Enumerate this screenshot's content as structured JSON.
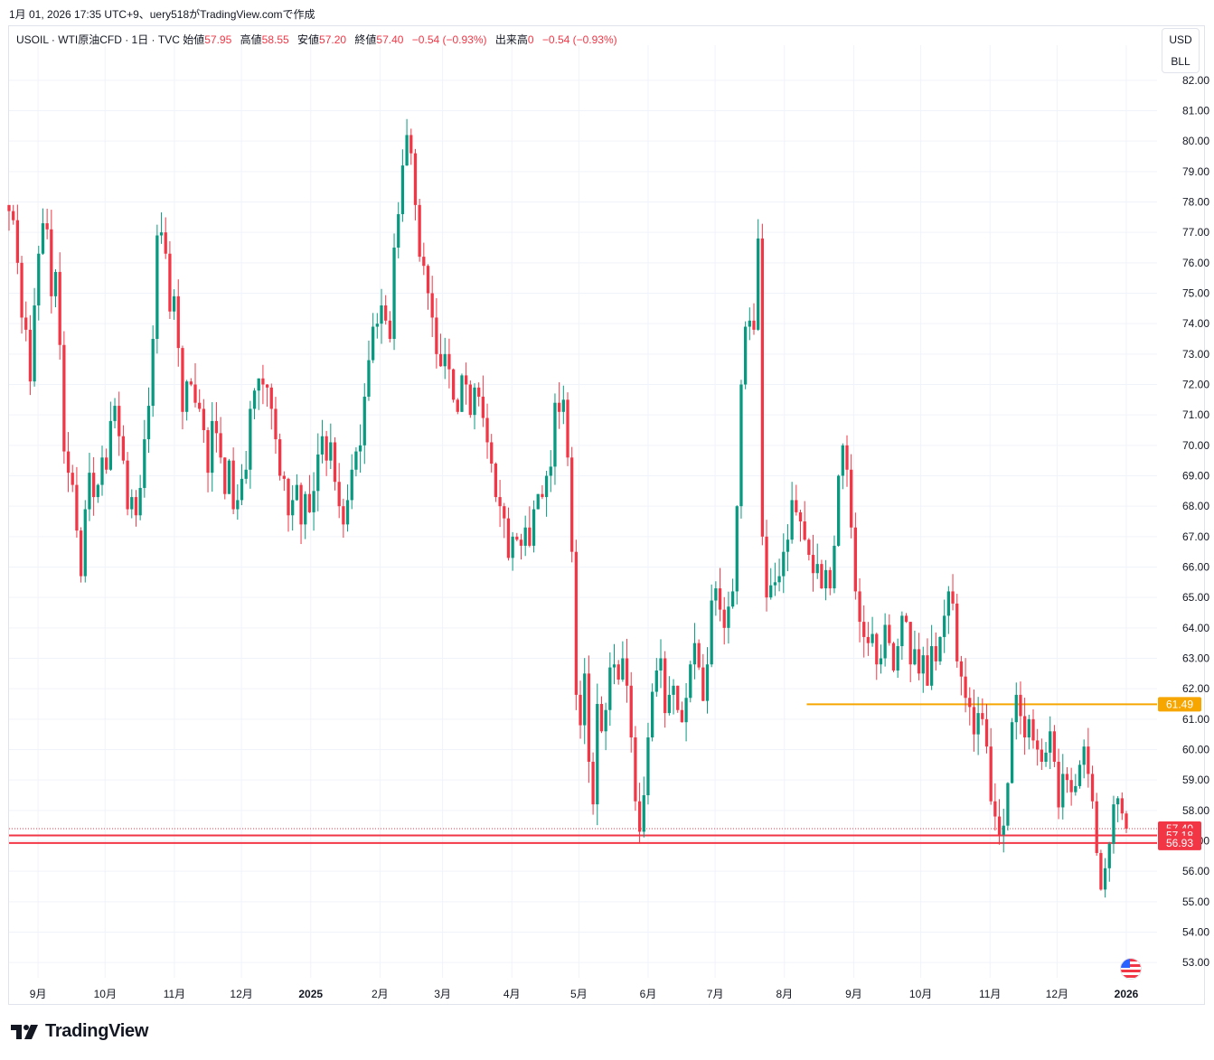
{
  "header": {
    "caption": "1月 01, 2026 17:35 UTC+9、uery518がTradingView.comで作成"
  },
  "legend": {
    "symbol": "USOIL · WTI原油CFD · 1日 · TVC",
    "open_label": "始値",
    "open": "57.95",
    "high_label": "高値",
    "high": "58.55",
    "low_label": "安値",
    "low": "57.20",
    "close_label": "終値",
    "close": "57.40",
    "change": "−0.54 (−0.93%)",
    "volume_label": "出来高",
    "volume": "0",
    "volume_change": "−0.54 (−0.93%)"
  },
  "units": {
    "currency": "USD",
    "unit": "BLL"
  },
  "footer": {
    "brand": "TradingView"
  },
  "colors": {
    "up": "#089981",
    "down": "#f23645",
    "level": "#f7a600",
    "grid": "#f0f3fa",
    "text": "#131722",
    "price_line": "#f23645"
  },
  "chart_data": {
    "type": "candlestick",
    "symbol": "USOIL",
    "interval": "1D",
    "ylim": [
      52.5,
      82.5
    ],
    "y_ticks": [
      "53.00",
      "54.00",
      "55.00",
      "56.00",
      "57.00",
      "58.00",
      "59.00",
      "60.00",
      "61.00",
      "62.00",
      "63.00",
      "64.00",
      "65.00",
      "66.00",
      "67.00",
      "68.00",
      "69.00",
      "70.00",
      "71.00",
      "72.00",
      "73.00",
      "74.00",
      "75.00",
      "76.00",
      "77.00",
      "78.00",
      "79.00",
      "80.00",
      "81.00",
      "82.00"
    ],
    "x_ticks": [
      {
        "label": "9月",
        "date": "2024-09-01"
      },
      {
        "label": "10月",
        "date": "2024-10-01"
      },
      {
        "label": "11月",
        "date": "2024-11-01"
      },
      {
        "label": "12月",
        "date": "2024-12-01"
      },
      {
        "label": "2025",
        "date": "2025-01-01",
        "bold": true
      },
      {
        "label": "2月",
        "date": "2025-02-01"
      },
      {
        "label": "3月",
        "date": "2025-03-01"
      },
      {
        "label": "4月",
        "date": "2025-04-01"
      },
      {
        "label": "5月",
        "date": "2025-05-01"
      },
      {
        "label": "6月",
        "date": "2025-06-01"
      },
      {
        "label": "7月",
        "date": "2025-07-01"
      },
      {
        "label": "8月",
        "date": "2025-08-01"
      },
      {
        "label": "9月",
        "date": "2025-09-01"
      },
      {
        "label": "10月",
        "date": "2025-10-01"
      },
      {
        "label": "11月",
        "date": "2025-11-01"
      },
      {
        "label": "12月",
        "date": "2025-12-01"
      },
      {
        "label": "2026",
        "date": "2026-01-01",
        "bold": true
      }
    ],
    "candle_dates": [
      "2024-08-19",
      "2026-01-01"
    ],
    "candles_close": [
      77.7,
      77.4,
      76.0,
      74.2,
      73.8,
      72.1,
      74.6,
      76.3,
      77.3,
      77.1,
      74.9,
      75.7,
      73.3,
      69.8,
      69.1,
      68.7,
      67.2,
      65.7,
      67.9,
      69.1,
      68.3,
      68.7,
      69.6,
      69.2,
      70.8,
      71.3,
      70.3,
      69.5,
      67.9,
      68.3,
      67.7,
      68.6,
      70.2,
      71.3,
      73.5,
      76.9,
      77.0,
      76.3,
      74.4,
      74.9,
      73.2,
      71.1,
      72.1,
      72.0,
      71.4,
      71.2,
      70.5,
      69.1,
      70.8,
      70.4,
      69.6,
      68.4,
      69.5,
      67.9,
      68.2,
      68.9,
      69.2,
      71.2,
      71.8,
      72.2,
      72.0,
      71.9,
      71.2,
      70.2,
      69.0,
      68.9,
      67.7,
      68.2,
      68.7,
      67.4,
      68.4,
      67.8,
      68.5,
      69.7,
      70.3,
      69.5,
      70.1,
      68.8,
      68.0,
      67.4,
      68.2,
      69.2,
      69.8,
      70.0,
      71.6,
      72.8,
      73.9,
      74.0,
      74.6,
      74.1,
      73.5,
      76.5,
      77.6,
      79.2,
      80.2,
      79.6,
      77.9,
      76.2,
      75.9,
      75.0,
      74.2,
      73.0,
      72.6,
      73.0,
      72.5,
      71.5,
      71.1,
      72.3,
      72.0,
      71.0,
      71.9,
      71.6,
      70.9,
      70.1,
      69.4,
      68.3,
      68.0,
      67.6,
      66.3,
      67.0,
      66.9,
      66.7,
      67.3,
      66.7,
      67.9,
      68.4,
      68.3,
      69.0,
      69.3,
      71.4,
      71.1,
      71.5,
      69.6,
      66.5,
      61.8,
      60.8,
      62.5,
      59.6,
      58.2,
      61.5,
      60.6,
      61.3,
      62.7,
      62.8,
      62.3,
      63.0,
      62.1,
      60.4,
      58.3,
      57.3,
      58.5,
      60.4,
      61.9,
      62.6,
      63.0,
      61.2,
      61.8,
      62.1,
      61.3,
      60.9,
      61.7,
      62.8,
      63.5,
      62.7,
      61.6,
      62.8,
      64.9,
      65.3,
      64.6,
      64.0,
      64.7,
      65.2,
      68.0,
      72.0,
      73.9,
      74.1,
      73.8,
      76.8,
      67.0,
      65.0,
      65.4,
      65.5,
      65.7,
      66.5,
      66.9,
      68.2,
      67.8,
      67.5,
      66.9,
      66.4,
      65.8,
      66.1,
      65.3,
      65.9,
      65.3,
      66.7,
      69.0,
      70.0,
      69.2,
      67.3,
      65.2,
      64.2,
      63.7,
      63.5,
      63.8,
      62.8,
      63.0,
      64.1,
      63.5,
      62.6,
      63.4,
      64.4,
      64.2,
      62.8,
      63.3,
      62.5,
      63.1,
      62.1,
      63.4,
      62.9,
      63.7,
      64.4,
      65.2,
      64.8,
      62.9,
      62.4,
      61.7,
      61.4,
      60.5,
      61.2,
      61.0,
      60.1,
      58.3,
      57.8,
      57.2,
      57.5,
      58.9,
      60.9,
      61.8,
      61.1,
      60.4,
      61.0,
      60.3,
      60.0,
      59.6,
      59.9,
      60.6,
      59.6,
      58.1,
      59.2,
      59.0,
      58.6,
      58.8,
      59.5,
      60.1,
      59.2,
      58.3,
      56.6,
      55.4,
      56.1,
      56.9,
      58.2,
      58.4,
      57.9,
      57.4
    ],
    "price_labels": [
      {
        "value": 61.49,
        "label": "61.49",
        "color": "#f7a600",
        "kind": "horizontal_line",
        "start_date": "2025-08-11"
      },
      {
        "value": 57.4,
        "label": "57.40",
        "color": "#f23645",
        "kind": "last_price"
      },
      {
        "value": 57.18,
        "label": "57.18",
        "color": "#f23645",
        "kind": "horizontal_line"
      },
      {
        "value": 56.93,
        "label": "56.93",
        "color": "#f23645",
        "kind": "horizontal_line"
      }
    ]
  }
}
